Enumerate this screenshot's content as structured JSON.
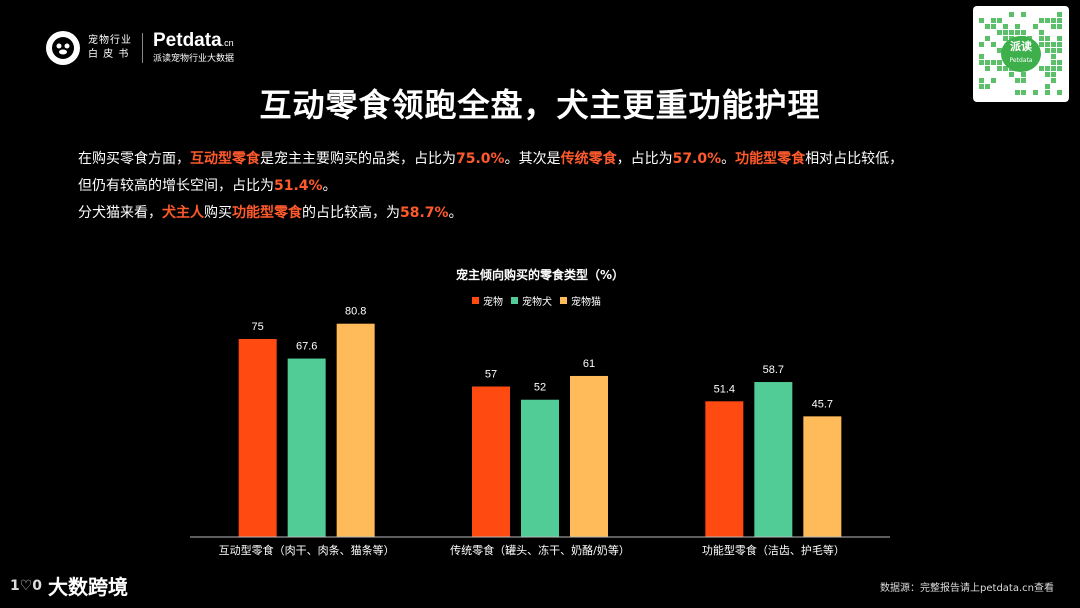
{
  "header": {
    "brand_line1": "宠物行业",
    "brand_line2": "白 皮 书",
    "petdata_name": "Petdata",
    "petdata_suffix": ".cn",
    "petdata_sub": "派读宠物行业大数据"
  },
  "qr": {
    "label": "派读",
    "sub": "Petdata"
  },
  "title": "互动零食领跑全盘，犬主更重功能护理",
  "paragraph": {
    "p1_a": "在购买零食方面，",
    "p1_b": "互动型零食",
    "p1_c": "是宠主主要购买的品类，占比为",
    "p1_d": "75.0%",
    "p1_e": "。其次是",
    "p1_f": "传统零食",
    "p1_g": "，占比为",
    "p1_h": "57.0%",
    "p1_i": "。",
    "p1_j": "功能型零食",
    "p1_k": "相对占比较低，",
    "p2_a": "但仍有较高的增长空间，占比为",
    "p2_b": "51.4%",
    "p2_c": "。",
    "p3_a": "分犬猫来看，",
    "p3_b": "犬主人",
    "p3_c": "购买",
    "p3_d": "功能型零食",
    "p3_e": "的占比较高，为",
    "p3_f": "58.7%",
    "p3_g": "。"
  },
  "chart_data": {
    "type": "bar",
    "title": "宠主倾向购买的零食类型（%）",
    "categories": [
      "互动型零食（肉干、肉条、猫条等）",
      "传统零食（罐头、冻干、奶酪/奶等）",
      "功能型零食（洁齿、护毛等）"
    ],
    "series": [
      {
        "name": "宠物",
        "color": "#ff4a12",
        "values": [
          75,
          57,
          51.4
        ]
      },
      {
        "name": "宠物犬",
        "color": "#52cc96",
        "values": [
          67.6,
          52,
          58.7
        ]
      },
      {
        "name": "宠物猫",
        "color": "#ffba5a",
        "values": [
          80.8,
          61,
          45.7
        ]
      }
    ],
    "ylim": [
      0,
      100
    ],
    "legend_position": "top-center",
    "grid": false
  },
  "footer": {
    "logo_mark": "1♡0",
    "logo_text": "大数跨境",
    "source": "数据源：完整报告请上petdata.cn查看"
  }
}
